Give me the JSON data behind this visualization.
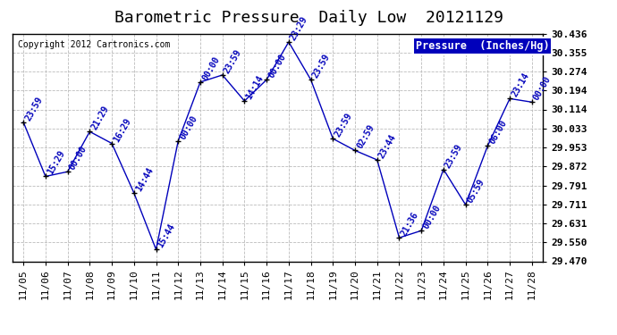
{
  "title": "Barometric Pressure  Daily Low  20121129",
  "copyright": "Copyright 2012 Cartronics.com",
  "legend_label": "Pressure  (Inches/Hg)",
  "dates": [
    "11/05",
    "11/06",
    "11/07",
    "11/08",
    "11/09",
    "11/10",
    "11/11",
    "11/12",
    "11/13",
    "11/14",
    "11/15",
    "11/16",
    "11/17",
    "11/18",
    "11/19",
    "11/20",
    "11/21",
    "11/22",
    "11/23",
    "11/24",
    "11/25",
    "11/26",
    "11/27",
    "11/28"
  ],
  "values": [
    30.06,
    29.83,
    29.85,
    30.02,
    29.97,
    29.76,
    29.52,
    29.98,
    30.23,
    30.26,
    30.15,
    30.24,
    30.4,
    30.24,
    29.99,
    29.94,
    29.9,
    29.57,
    29.6,
    29.86,
    29.71,
    29.96,
    30.16,
    30.145
  ],
  "times": [
    "23:59",
    "15:29",
    "00:00",
    "21:29",
    "16:29",
    "14:44",
    "15:44",
    "00:00",
    "00:00",
    "23:59",
    "14:14",
    "00:00",
    "23:29",
    "23:59",
    "23:59",
    "02:59",
    "23:44",
    "21:36",
    "00:00",
    "23:59",
    "05:59",
    "06:00",
    "23:14",
    "00:00"
  ],
  "ylim_min": 29.47,
  "ylim_max": 30.436,
  "yticks": [
    29.47,
    29.55,
    29.631,
    29.711,
    29.791,
    29.872,
    29.953,
    30.033,
    30.114,
    30.194,
    30.274,
    30.355,
    30.436
  ],
  "line_color": "#0000BB",
  "marker_color": "#000000",
  "label_color": "#0000BB",
  "bg_color": "#ffffff",
  "plot_bg_color": "#ffffff",
  "grid_color": "#bbbbbb",
  "title_fontsize": 13,
  "label_fontsize": 7,
  "tick_fontsize": 8,
  "legend_fontsize": 8.5,
  "copyright_fontsize": 7
}
